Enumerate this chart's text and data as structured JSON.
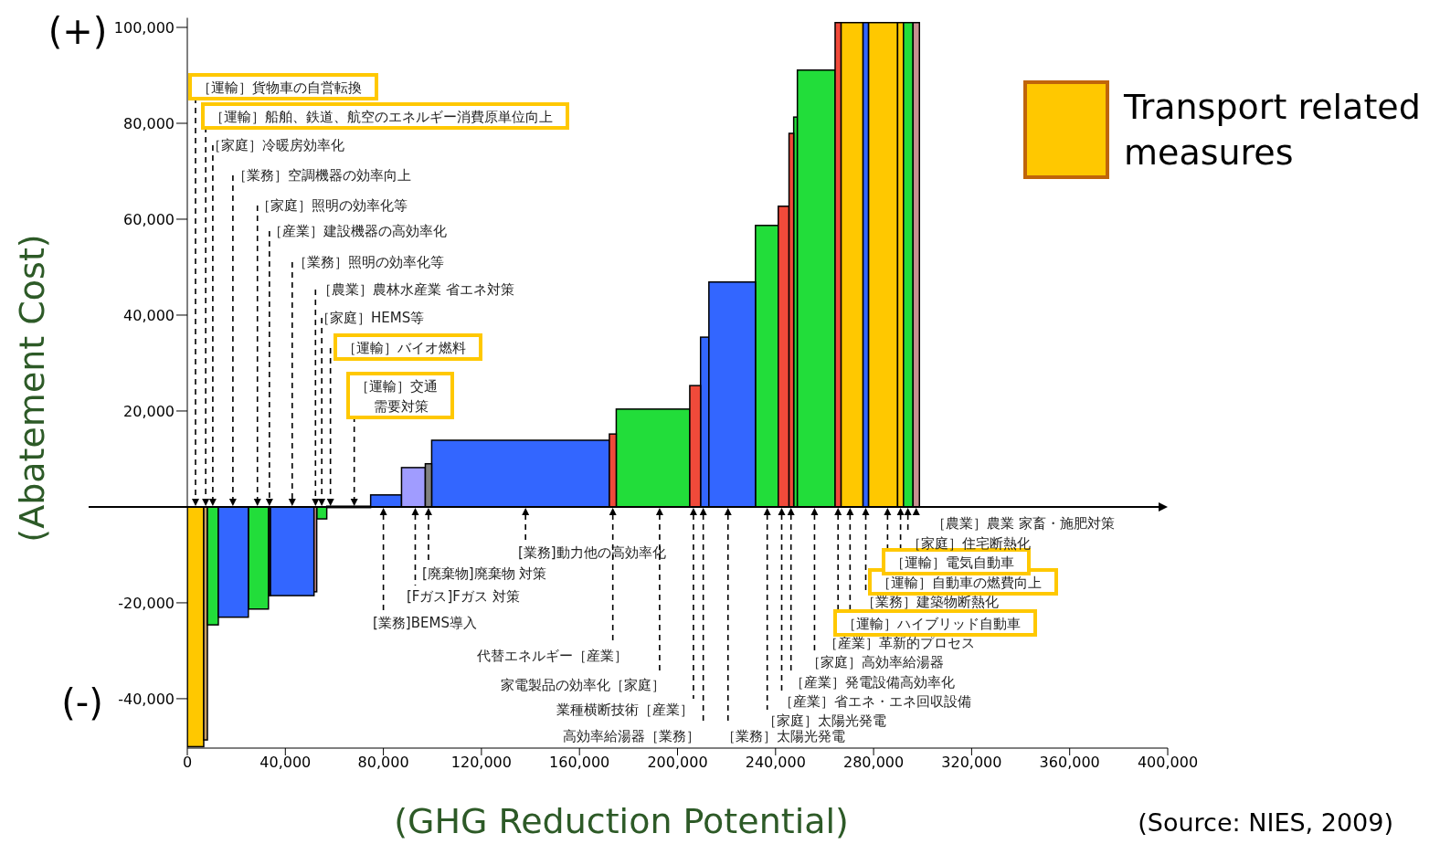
{
  "chart_data": {
    "type": "histogram",
    "xlabel": "(GHG Reduction Potential)",
    "ylabel": "(Abatement Cost)",
    "bins": [
      0,
      6700,
      8200,
      12650,
      24900,
      33100,
      33850,
      51700,
      52800,
      56900,
      74800,
      87400,
      97100,
      99700,
      172200,
      175000,
      205000,
      209400,
      212800,
      231800,
      241100,
      245500,
      247400,
      248900,
      264300,
      266700,
      275700,
      277900,
      289800,
      292200,
      296100,
      298700
    ],
    "series": [
      {
        "name": "Transport related measures",
        "color": "#ffc800",
        "values": [
          -50000,
          null,
          null,
          null,
          null,
          null,
          null,
          null,
          null,
          0,
          null,
          null,
          null,
          null,
          null,
          null,
          null,
          null,
          null,
          null,
          null,
          null,
          null,
          null,
          null,
          101000,
          null,
          101000,
          101000,
          null,
          null
        ]
      },
      {
        "color": "#c8a064",
        "values": [
          null,
          -48600,
          null,
          null,
          null,
          null,
          null,
          null,
          null,
          null,
          null,
          null,
          null,
          null,
          null,
          null,
          null,
          null,
          null,
          null,
          null,
          null,
          null,
          null,
          null,
          null,
          null,
          null,
          null,
          null,
          null
        ]
      },
      {
        "color": "#22dd3a",
        "values": [
          null,
          null,
          -24600,
          null,
          -21300,
          null,
          null,
          null,
          -2500,
          null,
          null,
          null,
          null,
          null,
          null,
          20400,
          null,
          null,
          null,
          58700,
          null,
          null,
          81300,
          91100,
          null,
          null,
          null,
          null,
          null,
          101000,
          null
        ]
      },
      {
        "color": "#3366ff",
        "values": [
          null,
          null,
          null,
          -23000,
          null,
          null,
          -18500,
          null,
          null,
          null,
          2500,
          null,
          null,
          13900,
          null,
          null,
          null,
          35400,
          46900,
          null,
          null,
          null,
          null,
          null,
          null,
          null,
          101000,
          null,
          null,
          null,
          null
        ]
      },
      {
        "color": "#f04a3a",
        "values": [
          null,
          null,
          null,
          null,
          null,
          null,
          null,
          null,
          null,
          null,
          null,
          null,
          null,
          null,
          15200,
          null,
          25300,
          null,
          null,
          null,
          62700,
          77900,
          null,
          null,
          101000,
          null,
          null,
          null,
          null,
          null,
          null
        ]
      },
      {
        "color": "#c89090",
        "values": [
          null,
          null,
          null,
          null,
          null,
          null,
          null,
          -17700,
          null,
          null,
          null,
          null,
          null,
          null,
          null,
          null,
          null,
          null,
          null,
          null,
          null,
          null,
          null,
          null,
          null,
          null,
          null,
          null,
          null,
          null,
          101000
        ]
      },
      {
        "color": "#a09cff",
        "values": [
          null,
          null,
          null,
          null,
          null,
          null,
          null,
          null,
          null,
          null,
          null,
          8200,
          null,
          null,
          null,
          null,
          null,
          null,
          null,
          null,
          null,
          null,
          null,
          null,
          null,
          null,
          null,
          null,
          null,
          null,
          null
        ]
      },
      {
        "color": "#808080",
        "values": [
          null,
          null,
          null,
          null,
          null,
          null,
          null,
          null,
          null,
          null,
          null,
          null,
          9000,
          null,
          null,
          null,
          null,
          null,
          null,
          null,
          null,
          null,
          null,
          null,
          null,
          null,
          null,
          null,
          null,
          null,
          null
        ]
      },
      {
        "color": "#222222",
        "values": [
          null,
          null,
          null,
          null,
          null,
          -18500,
          null,
          null,
          null,
          null,
          null,
          null,
          null,
          null,
          null,
          null,
          null,
          null,
          null,
          null,
          null,
          null,
          null,
          null,
          null,
          null,
          null,
          null,
          null,
          null,
          null
        ]
      }
    ],
    "xlim": [
      0,
      400000
    ],
    "xticks": [
      0,
      {
        "value": 40000,
        "label": "40,000"
      },
      {
        "value": 80000,
        "label": "80,000"
      },
      {
        "value": 120000,
        "label": "120,000"
      },
      {
        "value": 160000,
        "label": "160,000"
      },
      {
        "value": 200000,
        "label": "200,000"
      },
      {
        "value": 240000,
        "label": "240,000"
      },
      {
        "value": 280000,
        "label": "280,000"
      },
      {
        "value": 320000,
        "label": "320,000"
      },
      {
        "value": 360000,
        "label": "360,000"
      },
      {
        "value": 400000,
        "label": "400,000"
      }
    ],
    "ylim": [
      -50300,
      102000
    ],
    "yticks": [
      {
        "value": -40000,
        "label": "-40,000"
      },
      {
        "value": -20000,
        "label": "-20,000"
      },
      {
        "value": 20000,
        "label": "20,000"
      },
      {
        "value": 40000,
        "label": "40,000"
      },
      {
        "value": 60000,
        "label": "60,000"
      },
      {
        "value": 80000,
        "label": "80,000"
      },
      {
        "value": 100000,
        "label": "100,000"
      }
    ],
    "ref_lines": [
      {
        "axis": "y",
        "value": 0,
        "color": "#000000"
      }
    ],
    "legend": "top right",
    "annotations": [
      {
        "text": "［運輸］貨物車の自営転換",
        "x": 3350,
        "y": 0
      },
      {
        "text": "［運輸］船舶、鉄道、航空のエネルギー消費原単位向上",
        "x": 7500,
        "y": 0
      },
      {
        "text": "［家庭］冷暖房効率化",
        "x": 10400,
        "y": 0
      },
      {
        "text": "［業務］空調機器の効率向上",
        "x": 18600,
        "y": 0
      },
      {
        "text": "［家庭］照明の効率化等",
        "x": 28600,
        "y": 0
      },
      {
        "text": "［産業］建設機器の高効率化",
        "x": 33500,
        "y": 0
      },
      {
        "text": "［業務］照明の効率化等",
        "x": 42800,
        "y": 0
      },
      {
        "text": "［農業］農林水産業 省エネ対策",
        "x": 52300,
        "y": 0
      },
      {
        "text": "［家庭］HEMS等",
        "x": 54850,
        "y": 0
      },
      {
        "text": "［運輸］バイオ燃料",
        "x": 58400,
        "y": 0
      },
      {
        "text": "［運輸］交通需要対策",
        "x": 68100,
        "y": 0
      },
      {
        "text": "[業務]BEMS導入",
        "x": 80000,
        "y": 0
      },
      {
        "text": "[Fガス]Fガス 対策",
        "x": 93000,
        "y": 0
      },
      {
        "text": "[廃棄物]廃棄物 対策",
        "x": 98400,
        "y": 0
      },
      {
        "text": "[業務]動力他の高効率化",
        "x": 138000,
        "y": 0
      },
      {
        "text": "代替エネルギー［産業］",
        "x": 173600,
        "y": 0
      },
      {
        "text": "家電製品の効率化［家庭］",
        "x": 192700,
        "y": 0
      },
      {
        "text": "業種横断技術［産業］",
        "x": 206500,
        "y": 0
      },
      {
        "text": "高効率給湯器［業務］",
        "x": 210500,
        "y": 0
      },
      {
        "text": "［業務］太陽光発電",
        "x": 220600,
        "y": 0
      },
      {
        "text": "［家庭］太陽光発電",
        "x": 236600,
        "y": 0
      },
      {
        "text": "［産業］省エネ・エネ回収設備",
        "x": 242500,
        "y": 0
      },
      {
        "text": "［産業］発電設備高効率化",
        "x": 246300,
        "y": 0
      },
      {
        "text": "［家庭］高効率給湯器",
        "x": 255900,
        "y": 0
      },
      {
        "text": "［産業］革新的プロセス",
        "x": 265500,
        "y": 0
      },
      {
        "text": "［運輸］ハイブリッド自動車",
        "x": 270400,
        "y": 0
      },
      {
        "text": "［業務］建築物断熱化",
        "x": 276800,
        "y": 0
      },
      {
        "text": "［運輸］自動車の燃費向上",
        "x": 285700,
        "y": 0
      },
      {
        "text": "［運輸］電気自動車",
        "x": 291000,
        "y": 0
      },
      {
        "text": "［家庭］住宅断熱化",
        "x": 294000,
        "y": 0
      },
      {
        "text": "［農業］農業 家畜・施肥対策",
        "x": 297400,
        "y": 0
      },
      "(+)",
      "(-)",
      "(Source: NIES, 2009)"
    ]
  }
}
